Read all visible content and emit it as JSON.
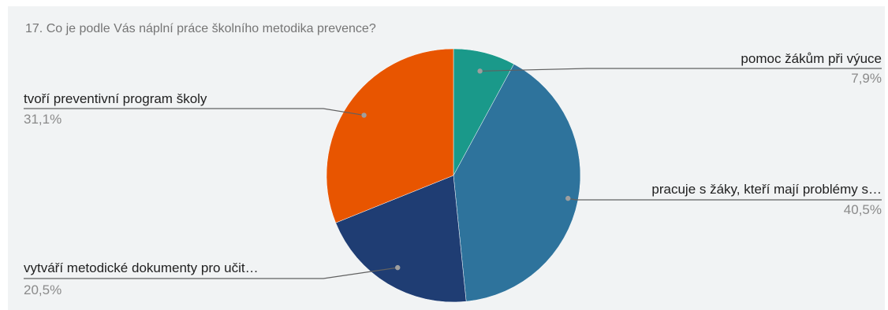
{
  "chart_data": {
    "type": "pie",
    "title": "17. Co je podle Vás náplní práce školního metodika prevence?",
    "slices": [
      {
        "label": "pomoc žákům při výuce",
        "value": 7.9,
        "value_label": "7,9%",
        "color": "#1a998a"
      },
      {
        "label": "pracuje s žáky, kteří mají problémy s…",
        "value": 40.5,
        "value_label": "40,5%",
        "color": "#2e739c"
      },
      {
        "label": "vytváří metodické dokumenty pro učit…",
        "value": 20.5,
        "value_label": "20,5%",
        "color": "#1f3d73"
      },
      {
        "label": "tvoří preventivní program školy",
        "value": 31.1,
        "value_label": "31,1%",
        "color": "#e85500"
      }
    ],
    "legend": "labels-outside",
    "start_angle": "top, clockwise"
  }
}
